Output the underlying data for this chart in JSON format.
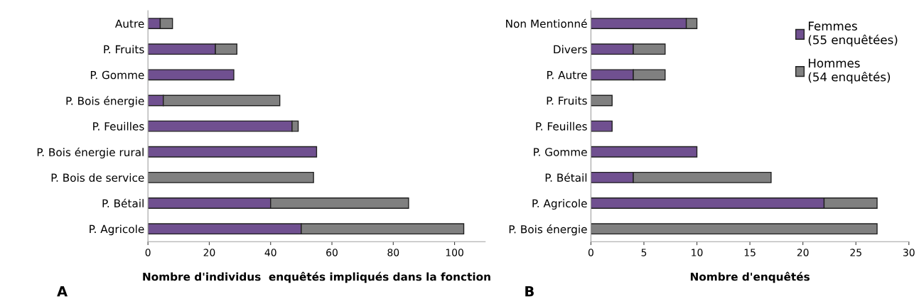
{
  "chart_data": [
    {
      "type": "bar",
      "orientation": "horizontal",
      "stacked": true,
      "xlabel": "Nombre d'individus  enquêtés impliqués dans la fonction",
      "annotations": [
        "A"
      ],
      "categories": [
        "Autre",
        "P. Fruits",
        "P. Gomme",
        "P. Bois énergie",
        "P. Feuilles",
        "P. Bois énergie rural",
        "P. Bois de service",
        "P. Bétail",
        "P. Agricole"
      ],
      "series": [
        {
          "color": "#705090",
          "values": [
            4,
            22,
            28,
            5,
            47,
            55,
            0,
            40,
            50
          ]
        },
        {
          "color": "#808080",
          "values": [
            4,
            7,
            0,
            38,
            2,
            0,
            54,
            45,
            53
          ]
        }
      ],
      "xlim": [
        0,
        110
      ],
      "xticks": [
        0,
        20,
        40,
        60,
        80,
        100
      ],
      "grid": false,
      "legend": false
    },
    {
      "type": "bar",
      "orientation": "horizontal",
      "stacked": true,
      "xlabel": "Nombre d'enquêtés",
      "annotations": [
        "B"
      ],
      "categories": [
        "Non Mentionné",
        "Divers",
        "P. Autre",
        "P. Fruits",
        "P. Feuilles",
        "P. Gomme",
        "P. Bétail",
        "P. Agricole",
        "P. Bois énergie"
      ],
      "series": [
        {
          "name": "Femmes\n(55 enquêtées)",
          "color": "#705090",
          "values": [
            9,
            4,
            4,
            0,
            2,
            10,
            4,
            22,
            0
          ]
        },
        {
          "name": "Hommes\n(54 enquêtés)",
          "color": "#808080",
          "values": [
            1,
            3,
            3,
            2,
            0,
            0,
            13,
            5,
            27
          ]
        }
      ],
      "xlim": [
        0,
        30
      ],
      "xticks": [
        0,
        5,
        10,
        15,
        20,
        25,
        30
      ],
      "grid": false,
      "legend": "top right"
    }
  ]
}
